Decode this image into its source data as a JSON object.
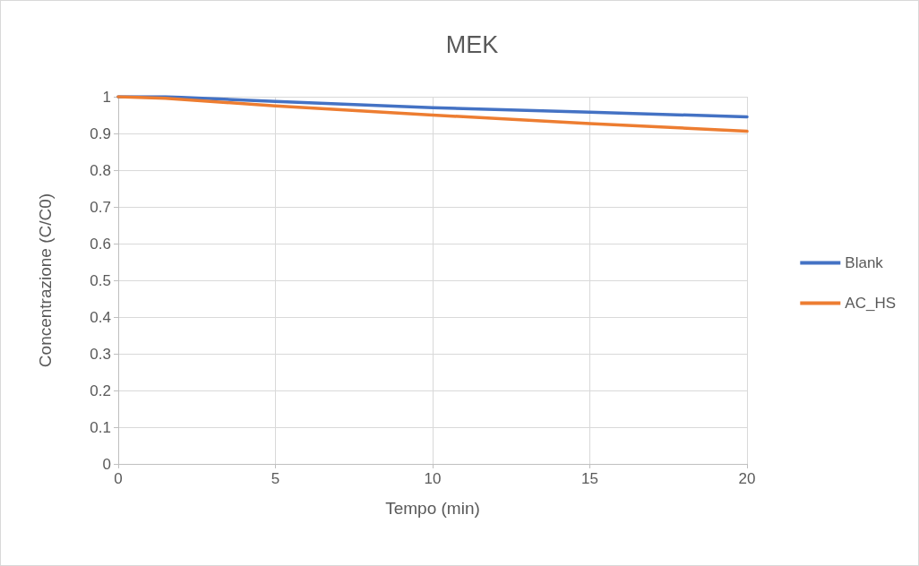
{
  "chart_data": {
    "type": "line",
    "title": "MEK",
    "xlabel": "Tempo (min)",
    "ylabel": "Concentrazione (C/C0)",
    "x": [
      0,
      1.5,
      5,
      10,
      15,
      20
    ],
    "series": [
      {
        "name": "Blank",
        "color": "#4472c4",
        "values": [
          1,
          1,
          0.987,
          0.97,
          0.958,
          0.945
        ]
      },
      {
        "name": "AC_HS",
        "color": "#ed7d31",
        "values": [
          1,
          0.996,
          0.975,
          0.95,
          0.927,
          0.906
        ]
      }
    ],
    "xlim": [
      0,
      20
    ],
    "xticks": [
      0,
      5,
      10,
      15,
      20
    ],
    "ylim": [
      0,
      1
    ],
    "yticks": [
      0,
      0.1,
      0.2,
      0.3,
      0.4,
      0.5,
      0.6,
      0.7,
      0.8,
      0.9,
      1
    ],
    "grid": true,
    "legend": "right",
    "marker": "none",
    "line_style": "solid"
  }
}
